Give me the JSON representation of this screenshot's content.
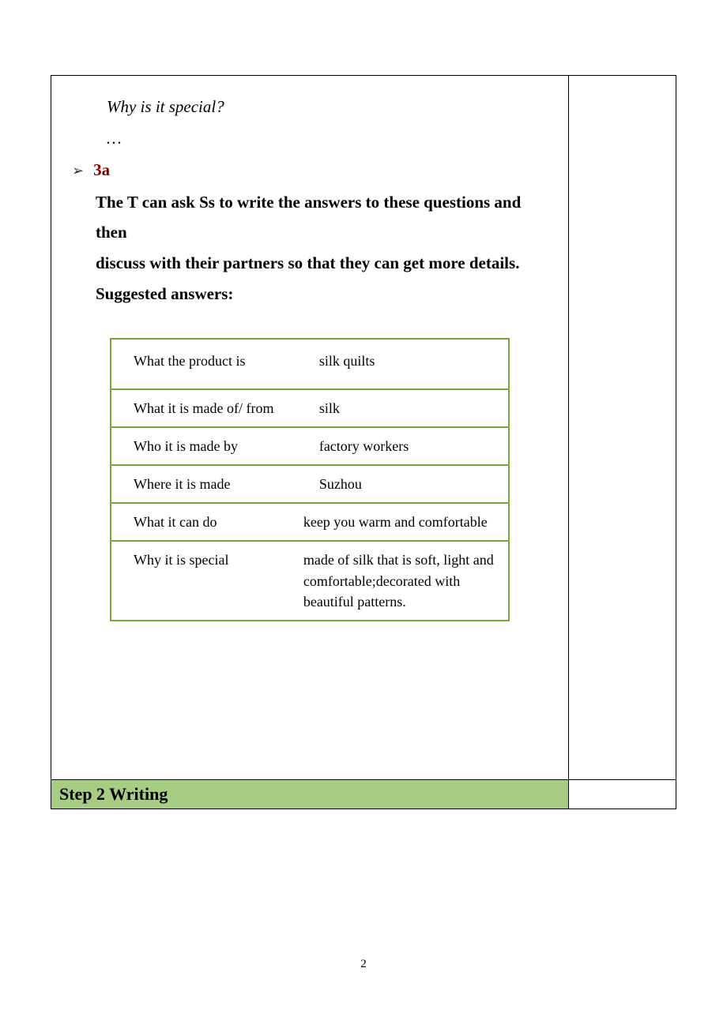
{
  "intro": {
    "question": "Why is it special?",
    "ellipsis": "…"
  },
  "bullet": {
    "marker": "➢",
    "label": "3a"
  },
  "instruction": {
    "line1": "The T can ask Ss to write the answers to these questions and then",
    "line2": "discuss with their partners so that they can get more details.",
    "line3": "Suggested answers:"
  },
  "table": {
    "rows": [
      {
        "q": "What the product is",
        "a": "silk quilts"
      },
      {
        "q": "What it is made of/ from",
        "a": "silk"
      },
      {
        "q": "Who it is made by",
        "a": "factory workers"
      },
      {
        "q": "Where it is made",
        "a": "Suzhou"
      },
      {
        "q": "What it can do",
        "a": "keep you warm and comfortable"
      },
      {
        "q": "Why it is special",
        "a": "made of silk that is soft, light and comfortable;decorated with beautiful patterns."
      }
    ],
    "border_color": "#7aa838"
  },
  "step": {
    "label": "Step 2   Writing",
    "bg_color": "#a7cd82"
  },
  "page_number": "2"
}
